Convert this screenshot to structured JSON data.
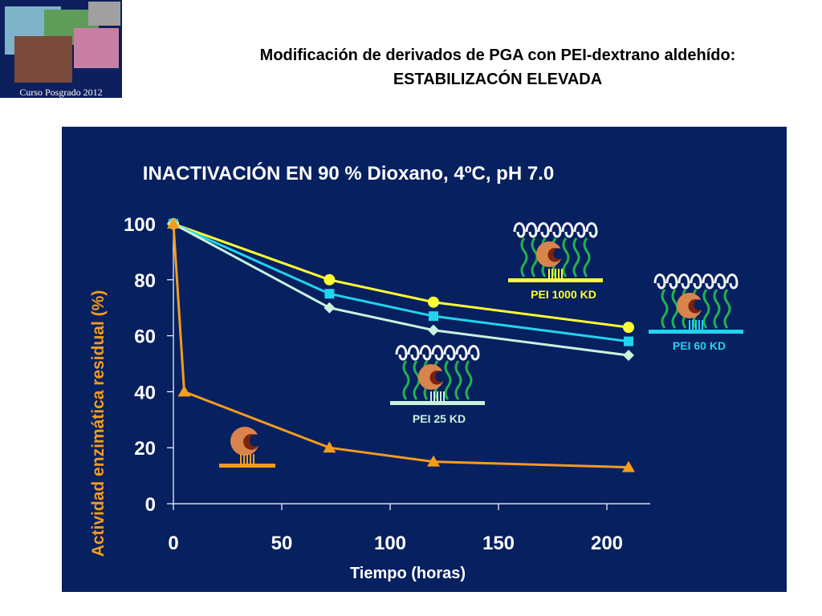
{
  "logo": {
    "caption": "Curso Posgrado 2012"
  },
  "slide": {
    "title_line1": "Modificación de derivados de PGA con PEI-dextrano aldehído:",
    "title_line2": "ESTABILIZACÓN ELEVADA"
  },
  "chart_data": {
    "type": "line",
    "title": "INACTIVACIÓN  EN 90 % Dioxano, 4ºC, pH 7.0",
    "xlabel": "Tiempo (horas)",
    "ylabel": "Actividad enzimática residual (%)",
    "xlim": [
      0,
      220
    ],
    "ylim": [
      0,
      100
    ],
    "x_ticks": [
      0,
      50,
      100,
      150,
      200
    ],
    "y_ticks": [
      0,
      20,
      40,
      60,
      80,
      100
    ],
    "grid": false,
    "series": [
      {
        "name": "PEI 1000 KD",
        "marker": "circle",
        "color": "#ffff33",
        "x": [
          0,
          72,
          120,
          210
        ],
        "y": [
          100,
          80,
          72,
          63
        ]
      },
      {
        "name": "PEI 60 KD",
        "marker": "square",
        "color": "#22d3ee",
        "x": [
          0,
          72,
          120,
          210
        ],
        "y": [
          100,
          75,
          67,
          58
        ]
      },
      {
        "name": "PEI 25 KD",
        "marker": "diamond",
        "color": "#c9f2df",
        "x": [
          0,
          72,
          120,
          210
        ],
        "y": [
          100,
          70,
          62,
          53
        ]
      },
      {
        "name": "",
        "marker": "triangle",
        "color": "#f39c1e",
        "x": [
          0,
          5,
          72,
          120,
          210
        ],
        "y": [
          100,
          40,
          20,
          15,
          13
        ]
      }
    ],
    "annotations": [
      {
        "text": "PEI 1000 KD",
        "color": "#ffff33"
      },
      {
        "text": "PEI 60 KD",
        "color": "#22d3ee"
      },
      {
        "text": "PEI 25 KD",
        "color": "#c9f2df"
      }
    ]
  }
}
